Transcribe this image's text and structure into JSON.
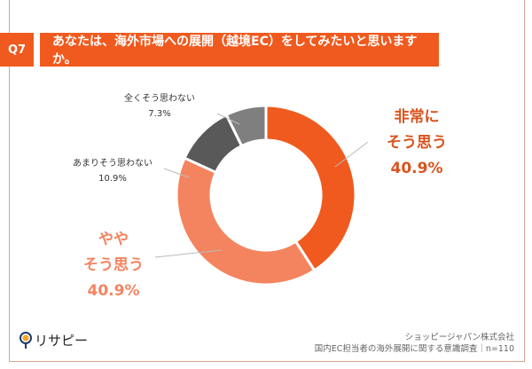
{
  "header": {
    "q_label": "Q7",
    "question": "あなたは、海外市場への展開（越境EC）をしてみたいと思いますか。"
  },
  "chart_data": {
    "type": "pie",
    "donut": true,
    "categories": [
      "非常にそう思う",
      "ややそう思う",
      "あまりそう思わない",
      "全くそう思わない"
    ],
    "values": [
      40.9,
      40.9,
      10.9,
      7.3
    ],
    "value_labels": [
      "40.9%",
      "40.9%",
      "10.9%",
      "7.3%"
    ],
    "label_lines": [
      [
        "非常に",
        "そう思う"
      ],
      [
        "やや",
        "そう思う"
      ],
      [
        "あまりそう思わない"
      ],
      [
        "全くそう思わない"
      ]
    ],
    "colors": [
      "#f05a1e",
      "#f4845f",
      "#595959",
      "#7f7f7f"
    ],
    "start": "top",
    "direction": "clockwise"
  },
  "footer": {
    "logo_text": "リサピー",
    "company": "ショッピージャパン株式会社",
    "survey": "国内EC担当者の海外展開に関する意識調査｜n=110"
  }
}
